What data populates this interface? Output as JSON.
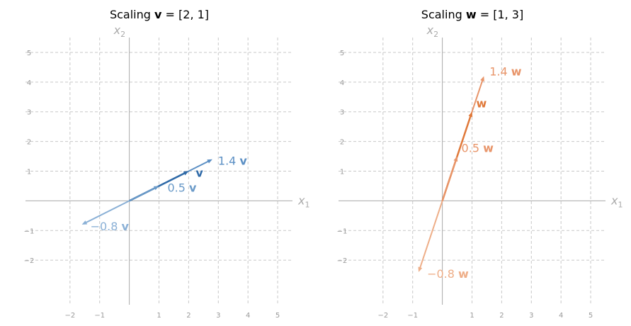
{
  "chart_data": [
    {
      "type": "vector",
      "title": "Scaling v = [2, 1]",
      "title_parts": {
        "prefix": "Scaling ",
        "vec": "v",
        "suffix": " = [2, 1]"
      },
      "xlabel": "x1",
      "ylabel": "x2",
      "xlim": [
        -3.5,
        5.5
      ],
      "ylim": [
        -3.5,
        5.5
      ],
      "xticks": [
        -2,
        -1,
        1,
        2,
        3,
        4,
        5
      ],
      "yticks": [
        -2,
        -1,
        1,
        2,
        3,
        4,
        5
      ],
      "grid": true,
      "base_vector": [
        2,
        1
      ],
      "vectors": [
        {
          "scale": 1.4,
          "label": "1.4 v",
          "color": "#5b8fc4"
        },
        {
          "scale": 1,
          "label": "v",
          "color": "#2f6aa8",
          "bold": true
        },
        {
          "scale": 0.5,
          "label": "0.5 v",
          "color": "#6a9ac8"
        },
        {
          "scale": -0.8,
          "label": "−0.8 v",
          "color": "#8ab0d6"
        }
      ]
    },
    {
      "type": "vector",
      "title": "Scaling w = [1, 3]",
      "title_parts": {
        "prefix": "Scaling ",
        "vec": "w",
        "suffix": " = [1, 3]"
      },
      "xlabel": "x1",
      "ylabel": "x2",
      "xlim": [
        -3.5,
        5.5
      ],
      "ylim": [
        -3.5,
        5.5
      ],
      "xticks": [
        -2,
        -1,
        1,
        2,
        3,
        4,
        5
      ],
      "yticks": [
        -2,
        -1,
        1,
        2,
        3,
        4,
        5
      ],
      "grid": true,
      "base_vector": [
        1,
        3
      ],
      "vectors": [
        {
          "scale": 1.4,
          "label": "1.4 w",
          "color": "#e8956a"
        },
        {
          "scale": 1,
          "label": "w",
          "color": "#e0793a",
          "bold": true
        },
        {
          "scale": 0.5,
          "label": "0.5 w",
          "color": "#e8956a"
        },
        {
          "scale": -0.8,
          "label": "−0.8 w",
          "color": "#eeae88"
        }
      ]
    }
  ]
}
